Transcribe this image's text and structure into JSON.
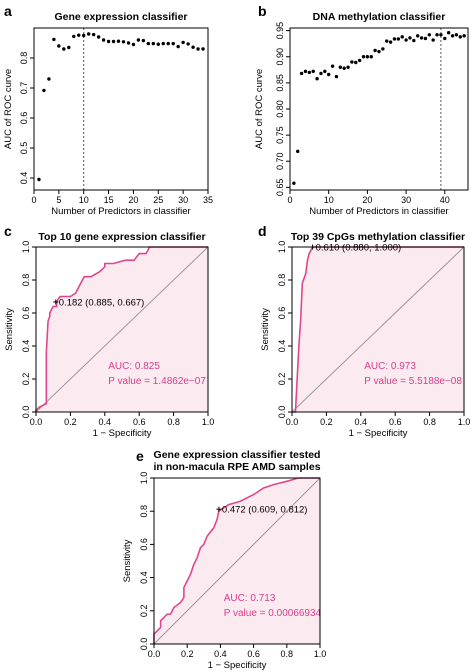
{
  "colors": {
    "roc_line": "#e0468e",
    "roc_fill": "#fbeaf0",
    "auc_text": "#d63f8c",
    "frame": "#000000",
    "dotted": "#555555"
  },
  "chart_data": [
    {
      "id": "a",
      "letter": "a",
      "type": "scatter",
      "title": "Gene expression classifier",
      "xlabel": "Number of Predictors in classifier",
      "ylabel": "AUC of ROC curve",
      "xlim": [
        0,
        35
      ],
      "ylim": [
        0.36,
        0.9
      ],
      "xticks": [
        0,
        5,
        10,
        15,
        20,
        25,
        30,
        35
      ],
      "yticks": [
        0.4,
        0.5,
        0.6,
        0.7,
        0.8
      ],
      "vline": 10,
      "x": [
        1,
        2,
        3,
        4,
        5,
        6,
        7,
        8,
        9,
        10,
        11,
        12,
        13,
        14,
        15,
        16,
        17,
        18,
        19,
        20,
        21,
        22,
        23,
        24,
        25,
        26,
        27,
        28,
        29,
        30,
        31,
        32,
        33,
        34
      ],
      "y": [
        0.395,
        0.692,
        0.73,
        0.862,
        0.84,
        0.83,
        0.835,
        0.872,
        0.876,
        0.875,
        0.88,
        0.878,
        0.87,
        0.86,
        0.855,
        0.855,
        0.856,
        0.854,
        0.85,
        0.845,
        0.86,
        0.858,
        0.848,
        0.848,
        0.846,
        0.848,
        0.848,
        0.848,
        0.838,
        0.852,
        0.847,
        0.836,
        0.83,
        0.83
      ]
    },
    {
      "id": "b",
      "letter": "b",
      "type": "scatter",
      "title": "DNA methylation classifier",
      "xlabel": "Number of Predictors in classifier",
      "ylabel": "AUC of ROC curve",
      "xlim": [
        0,
        46
      ],
      "ylim": [
        0.645,
        0.955
      ],
      "xticks": [
        0,
        10,
        20,
        30,
        40
      ],
      "yticks": [
        0.65,
        0.7,
        0.75,
        0.8,
        0.85,
        0.9,
        0.95
      ],
      "vline": 39,
      "x": [
        1,
        2,
        3,
        4,
        5,
        6,
        7,
        8,
        9,
        10,
        11,
        12,
        13,
        14,
        15,
        16,
        17,
        18,
        19,
        20,
        21,
        22,
        23,
        24,
        25,
        26,
        27,
        28,
        29,
        30,
        31,
        32,
        33,
        34,
        35,
        36,
        37,
        38,
        39,
        40,
        41,
        42,
        43,
        44,
        45
      ],
      "y": [
        0.658,
        0.719,
        0.868,
        0.872,
        0.87,
        0.872,
        0.858,
        0.868,
        0.872,
        0.866,
        0.882,
        0.862,
        0.88,
        0.878,
        0.88,
        0.89,
        0.889,
        0.893,
        0.9,
        0.9,
        0.9,
        0.912,
        0.91,
        0.915,
        0.93,
        0.928,
        0.934,
        0.934,
        0.938,
        0.932,
        0.936,
        0.931,
        0.94,
        0.936,
        0.935,
        0.942,
        0.932,
        0.942,
        0.942,
        0.935,
        0.946,
        0.94,
        0.942,
        0.938,
        0.94
      ]
    },
    {
      "id": "c",
      "letter": "c",
      "type": "line",
      "title": "Top 10 gene expression classifier",
      "xlabel": "1 − Specificity",
      "ylabel": "Sensitivity",
      "xlim": [
        0,
        1
      ],
      "ylim": [
        0,
        1
      ],
      "xticks": [
        0.0,
        0.2,
        0.4,
        0.6,
        0.8,
        1.0
      ],
      "yticks": [
        0.0,
        0.2,
        0.4,
        0.6,
        0.8,
        1.0
      ],
      "threshold_label": "0.182 (0.885, 0.667)",
      "threshold_point": [
        0.115,
        0.667
      ],
      "auc_label": "AUC: 0.825",
      "p_label": "P value = 1.4862e−07",
      "roc": [
        [
          0,
          0
        ],
        [
          0,
          0.01
        ],
        [
          0.02,
          0.03
        ],
        [
          0.04,
          0.04
        ],
        [
          0.06,
          0.05
        ],
        [
          0.06,
          0.28
        ],
        [
          0.06,
          0.36
        ],
        [
          0.07,
          0.55
        ],
        [
          0.08,
          0.58
        ],
        [
          0.08,
          0.6
        ],
        [
          0.1,
          0.64
        ],
        [
          0.12,
          0.64
        ],
        [
          0.12,
          0.67
        ],
        [
          0.14,
          0.7
        ],
        [
          0.2,
          0.7
        ],
        [
          0.23,
          0.72
        ],
        [
          0.26,
          0.78
        ],
        [
          0.28,
          0.82
        ],
        [
          0.32,
          0.82
        ],
        [
          0.37,
          0.85
        ],
        [
          0.4,
          0.88
        ],
        [
          0.4,
          0.9
        ],
        [
          0.45,
          0.9
        ],
        [
          0.52,
          0.92
        ],
        [
          0.57,
          0.92
        ],
        [
          0.6,
          0.96
        ],
        [
          0.64,
          0.96
        ],
        [
          0.66,
          1.0
        ],
        [
          1.0,
          1.0
        ]
      ]
    },
    {
      "id": "d",
      "letter": "d",
      "type": "line",
      "title": "Top 39 CpGs methylation classifier",
      "xlabel": "1 − Specificity",
      "ylabel": "Sensitivity",
      "xlim": [
        0,
        1
      ],
      "ylim": [
        0,
        1
      ],
      "xticks": [
        0.0,
        0.2,
        0.4,
        0.6,
        0.8,
        1.0
      ],
      "yticks": [
        0.0,
        0.2,
        0.4,
        0.6,
        0.8,
        1.0
      ],
      "threshold_label": "0.610 (0.880, 1.000)",
      "threshold_point": [
        0.12,
        1.0
      ],
      "auc_label": "AUC: 0.973",
      "p_label": "P value = 5.5188e−08",
      "roc": [
        [
          0,
          0
        ],
        [
          0.02,
          0.0
        ],
        [
          0.03,
          0.2
        ],
        [
          0.04,
          0.4
        ],
        [
          0.05,
          0.55
        ],
        [
          0.06,
          0.78
        ],
        [
          0.08,
          0.84
        ],
        [
          0.09,
          0.92
        ],
        [
          0.1,
          0.96
        ],
        [
          0.12,
          1.0
        ],
        [
          1.0,
          1.0
        ]
      ]
    },
    {
      "id": "e",
      "letter": "e",
      "type": "line",
      "title": "Gene expression classifier tested",
      "title2": "in non-macula RPE AMD samples",
      "xlabel": "1 − Specificity",
      "ylabel": "Sensitivity",
      "xlim": [
        0,
        1
      ],
      "ylim": [
        0,
        1
      ],
      "xticks": [
        0.0,
        0.2,
        0.4,
        0.6,
        0.8,
        1.0
      ],
      "yticks": [
        0.0,
        0.2,
        0.4,
        0.6,
        0.8,
        1.0
      ],
      "threshold_label": "0.472 (0.609, 0.812)",
      "threshold_point": [
        0.391,
        0.812
      ],
      "auc_label": "AUC: 0.713",
      "p_label": "P value = 0.00066934",
      "roc": [
        [
          0,
          0
        ],
        [
          0,
          0.06
        ],
        [
          0.04,
          0.1
        ],
        [
          0.04,
          0.14
        ],
        [
          0.08,
          0.18
        ],
        [
          0.1,
          0.18
        ],
        [
          0.12,
          0.22
        ],
        [
          0.16,
          0.25
        ],
        [
          0.18,
          0.28
        ],
        [
          0.18,
          0.34
        ],
        [
          0.2,
          0.38
        ],
        [
          0.22,
          0.42
        ],
        [
          0.24,
          0.48
        ],
        [
          0.26,
          0.52
        ],
        [
          0.28,
          0.58
        ],
        [
          0.3,
          0.6
        ],
        [
          0.32,
          0.65
        ],
        [
          0.36,
          0.7
        ],
        [
          0.38,
          0.75
        ],
        [
          0.39,
          0.8
        ],
        [
          0.42,
          0.82
        ],
        [
          0.45,
          0.84
        ],
        [
          0.52,
          0.86
        ],
        [
          0.6,
          0.9
        ],
        [
          0.66,
          0.94
        ],
        [
          0.72,
          0.96
        ],
        [
          0.8,
          0.98
        ],
        [
          0.87,
          1.0
        ],
        [
          1.0,
          1.0
        ]
      ]
    }
  ]
}
